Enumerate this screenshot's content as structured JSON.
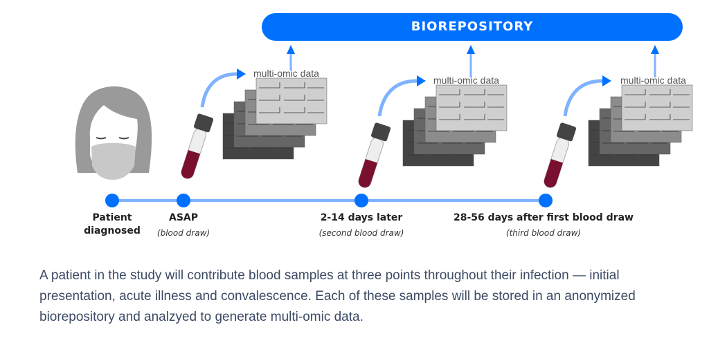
{
  "banner": {
    "label": "BIOREPOSITORY"
  },
  "multi_omic_label": "multi-omic data",
  "timeline": [
    {
      "title": "Patient",
      "title2": "diagnosed",
      "subtitle": ""
    },
    {
      "title": "ASAP",
      "subtitle": "(blood draw)"
    },
    {
      "title": "2-14 days later",
      "subtitle": "(second blood draw)"
    },
    {
      "title": "28-56 days after first blood draw",
      "subtitle": "(third blood draw)"
    }
  ],
  "caption": "A patient in the study will contribute blood samples at three points throughout their infection — initial presentation, acute illness and convalescence. Each of these samples will be stored in an anonymized biorepository and analzyed to generate multi-omic data.",
  "colors": {
    "accent": "#0070ff",
    "line": "#7fb2ff",
    "blood": "#7a1030",
    "gray": "#9a9a9a"
  }
}
